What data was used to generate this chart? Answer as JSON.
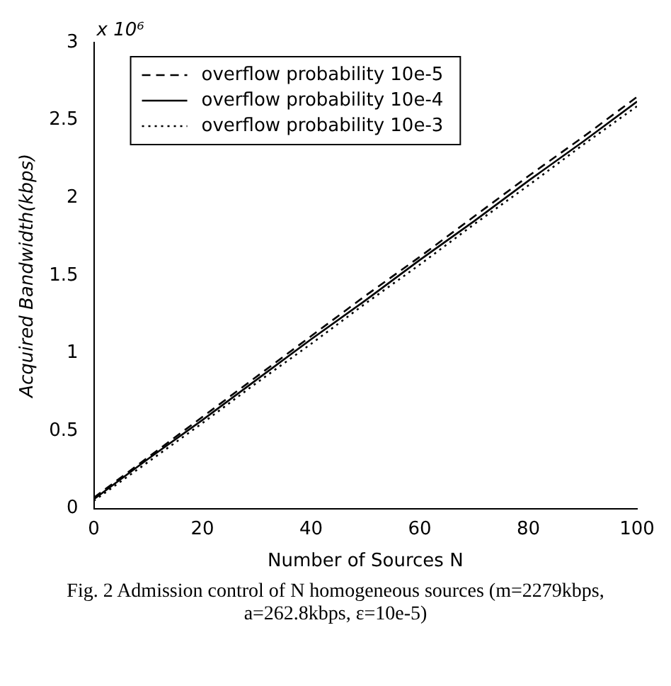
{
  "chart_data": {
    "type": "line",
    "xlabel": "Number of Sources N",
    "ylabel": "Acquired Bandwidth(kbps)",
    "x": [
      0,
      10,
      20,
      30,
      40,
      50,
      60,
      70,
      80,
      90,
      100
    ],
    "xlim": [
      0,
      100
    ],
    "xticks": [
      0,
      20,
      40,
      60,
      80,
      100
    ],
    "ylim": [
      0,
      3
    ],
    "yticks": [
      0,
      0.5,
      1,
      1.5,
      2,
      2.5,
      3
    ],
    "grid": false,
    "legend": "top left",
    "marker": "none",
    "series": [
      {
        "name": "overflow probability 10e-5",
        "color": "#000000",
        "line_style": "dashed",
        "values": [
          0.07,
          0.33,
          0.59,
          0.85,
          1.11,
          1.37,
          1.62,
          1.88,
          2.14,
          2.39,
          2.65
        ]
      },
      {
        "name": "overflow probability 10e-4",
        "color": "#000000",
        "line_style": "solid",
        "values": [
          0.06,
          0.32,
          0.57,
          0.83,
          1.09,
          1.34,
          1.6,
          1.85,
          2.11,
          2.36,
          2.62
        ]
      },
      {
        "name": "overflow probability 10e-3",
        "color": "#000000",
        "line_style": "dotted",
        "values": [
          0.05,
          0.3,
          0.55,
          0.81,
          1.06,
          1.32,
          1.57,
          1.83,
          2.08,
          2.34,
          2.59
        ]
      }
    ],
    "annotations": [
      "x 10⁶",
      "Fig. 2    Admission control of N homogeneous sources (m=2279kbps, a=262.8kbps, ε=10e-5)"
    ]
  }
}
